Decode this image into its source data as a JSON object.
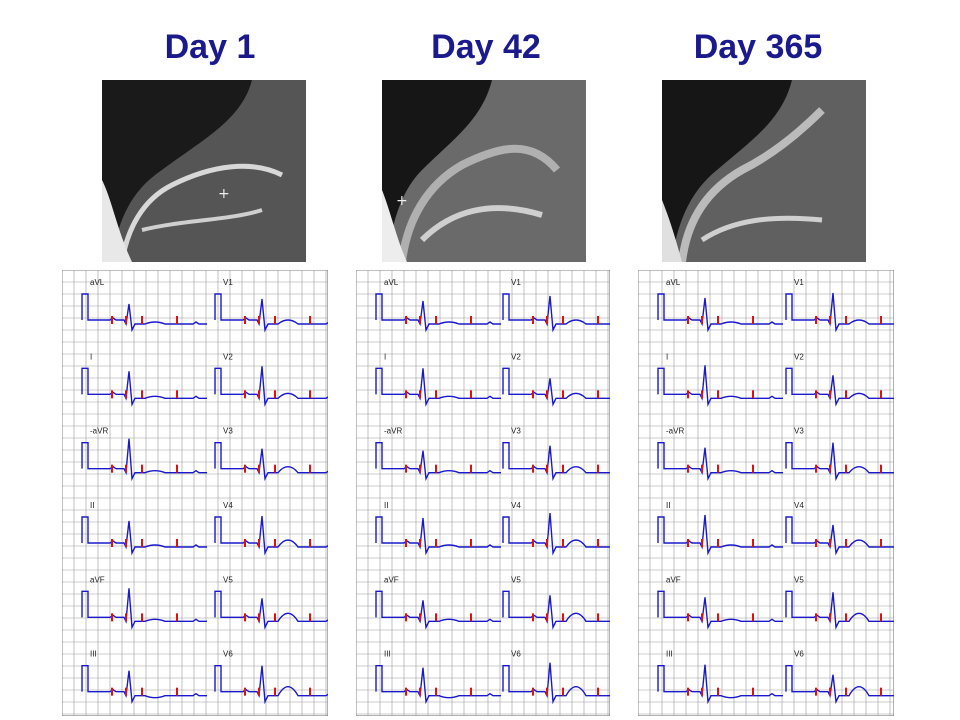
{
  "panels": [
    {
      "title": "Day 1",
      "mri_marker": true,
      "leads_left": [
        "aVL",
        "I",
        "-aVR",
        "II",
        "aVF",
        "III"
      ],
      "leads_right": [
        "V1",
        "V2",
        "V3",
        "V4",
        "V5",
        "V6"
      ]
    },
    {
      "title": "Day 42",
      "mri_marker": true,
      "leads_left": [
        "aVL",
        "I",
        "-aVR",
        "II",
        "aVF",
        "III"
      ],
      "leads_right": [
        "V1",
        "V2",
        "V3",
        "V4",
        "V5",
        "V6"
      ]
    },
    {
      "title": "Day 365",
      "mri_marker": false,
      "leads_left": [
        "aVL",
        "I",
        "-aVR",
        "II",
        "aVF",
        "III"
      ],
      "leads_right": [
        "V1",
        "V2",
        "V3",
        "V4",
        "V5",
        "V6"
      ]
    }
  ],
  "colors": {
    "title": "#1a1a8c",
    "trace": "#1a1acc",
    "marker": "#e01010",
    "grid": "#9a9a9a"
  }
}
